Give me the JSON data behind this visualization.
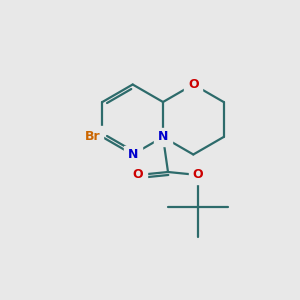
{
  "background_color": "#e8e8e8",
  "bond_color": "#2d6b6b",
  "atom_colors": {
    "N": "#0000cc",
    "O": "#cc0000",
    "Br": "#cc6600"
  },
  "figsize": [
    3.0,
    3.0
  ],
  "dpi": 100,
  "bond_lw": 1.6
}
